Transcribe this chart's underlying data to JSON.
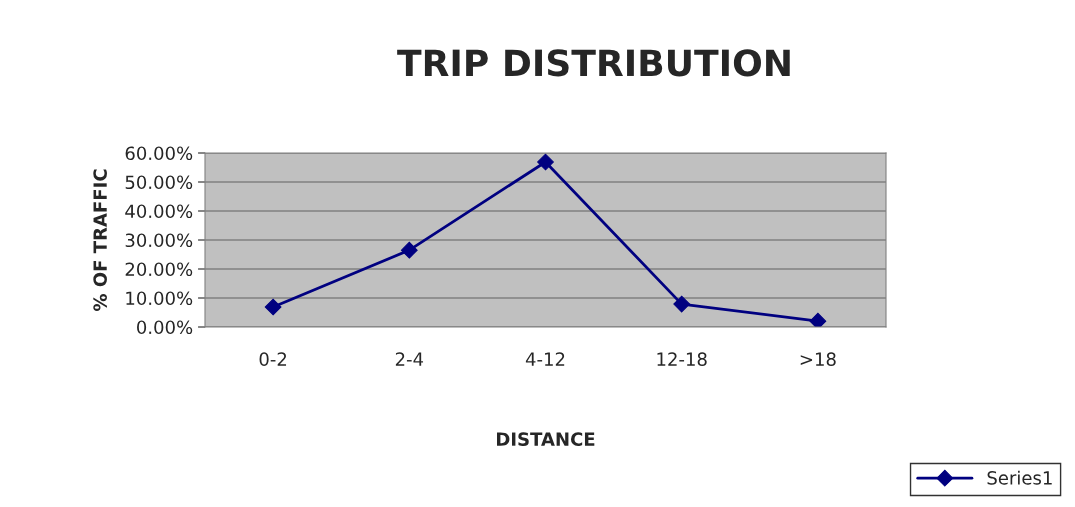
{
  "chart_data": {
    "type": "line",
    "title": "TRIP DISTRIBUTION",
    "xlabel": "DISTANCE",
    "ylabel": "% OF TRAFFIC",
    "categories": [
      "0-2",
      "2-4",
      "4-12",
      "12-18",
      ">18"
    ],
    "series": [
      {
        "name": "Series1",
        "color": "#000080",
        "values": [
          6.9,
          26.5,
          56.9,
          7.9,
          2.0
        ]
      }
    ],
    "ylim": [
      0,
      60
    ],
    "yticks": [
      {
        "value": 0,
        "label": "0.00%"
      },
      {
        "value": 10,
        "label": "10.00%"
      },
      {
        "value": 20,
        "label": "20.00%"
      },
      {
        "value": 30,
        "label": "30.00%"
      },
      {
        "value": 40,
        "label": "40.00%"
      },
      {
        "value": 50,
        "label": "50.00%"
      },
      {
        "value": 60,
        "label": "60.00%"
      }
    ],
    "grid": "y",
    "legend": "bottom right",
    "marker": "diamond",
    "line_style": "solid"
  }
}
